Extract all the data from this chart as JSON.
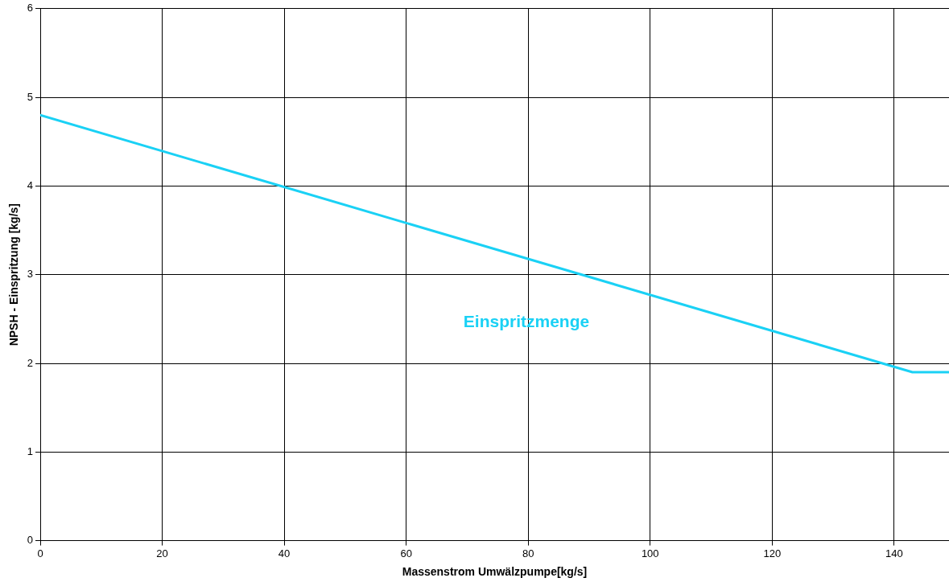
{
  "chart_data": {
    "type": "line",
    "xlabel": "Massenstrom Umwälzpumpe[kg/s]",
    "ylabel": "NPSH - Einspritzung [kg/s]",
    "series": [
      {
        "name": "Einspritzmenge",
        "color": "#1ad1f5",
        "x": [
          0,
          143,
          149
        ],
        "values": [
          4.8,
          1.9,
          1.9
        ]
      }
    ],
    "xlim": [
      0,
      149
    ],
    "xticks": [
      0,
      20,
      40,
      60,
      80,
      100,
      120,
      140
    ],
    "ylim": [
      0,
      6
    ],
    "yticks": [
      0,
      1,
      2,
      3,
      4,
      5,
      6
    ],
    "grid": true,
    "legend": false,
    "marker": "none",
    "line_style": "solid"
  }
}
